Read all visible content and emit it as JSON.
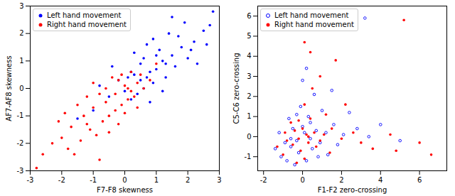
{
  "chart_data": [
    {
      "type": "scatter",
      "x_label": "F7-F8 skewness",
      "y_label": "AF7-AF8 skewness",
      "xlim": [
        -3,
        3
      ],
      "ylim": [
        -3,
        3
      ],
      "xticks": [
        -3,
        -2,
        -1,
        0,
        1,
        2,
        3
      ],
      "yticks": [
        -3,
        -2,
        -1,
        0,
        1,
        2,
        3
      ],
      "legend": "upper left",
      "series": [
        {
          "name": "Left hand movement",
          "color": "blue",
          "marker": "filled",
          "x": [
            0.5,
            0.8,
            1.2,
            0.3,
            1.5,
            0.9,
            0.1,
            1.8,
            2.2,
            0.6,
            1.0,
            0.4,
            1.3,
            2.5,
            0.7,
            1.6,
            -0.2,
            0.2,
            1.1,
            2.0,
            0.0,
            1.4,
            2.7,
            0.8,
            1.9,
            -0.5,
            0.5,
            1.7,
            2.3,
            -1.0,
            0.3,
            1.2,
            2.8,
            0.9,
            -0.4,
            1.5,
            2.1,
            0.6,
            -1.5,
            1.0,
            2.6,
            0.2,
            -0.8,
            1.3,
            0.7
          ],
          "y": [
            0.3,
            0.6,
            1.0,
            0.5,
            1.2,
            0.2,
            0.4,
            1.5,
            1.7,
            1.1,
            0.7,
            -0.2,
            0.4,
            2.1,
            1.6,
            0.8,
            0.3,
            -0.4,
            1.4,
            1.1,
            -0.1,
            2.0,
            2.3,
            -0.5,
            2.4,
            -0.3,
            0.9,
            1.9,
            0.9,
            -0.8,
            1.3,
            -0.1,
            2.8,
            1.8,
            0.8,
            2.6,
            1.4,
            0.0,
            -1.1,
            1.2,
            1.6,
            0.6,
            0.1,
            0.9,
            0.4
          ]
        },
        {
          "name": "Right hand movement",
          "color": "red",
          "marker": "filled",
          "x": [
            -0.3,
            0.0,
            -0.6,
            0.2,
            -1.0,
            -0.2,
            0.4,
            -1.3,
            -0.8,
            -0.5,
            0.1,
            -1.7,
            -2.0,
            -0.1,
            0.5,
            -1.1,
            -0.4,
            -2.3,
            -0.7,
            0.3,
            -1.5,
            -0.9,
            0.0,
            -2.6,
            -1.2,
            0.6,
            -0.2,
            -1.8,
            -0.6,
            0.2,
            -1.4,
            -2.8,
            0.8,
            -0.3,
            -1.9,
            -1.0,
            -0.5,
            0.1,
            -2.1,
            -0.8,
            1.0,
            -1.6,
            -0.1,
            -1.2,
            0.4
          ],
          "y": [
            -0.2,
            0.1,
            -0.5,
            -0.1,
            -0.7,
            0.3,
            0.2,
            -1.0,
            -0.2,
            -1.0,
            -0.4,
            -1.4,
            -1.8,
            -0.6,
            0.5,
            -1.5,
            0.4,
            -2.0,
            -1.2,
            -0.3,
            -0.6,
            -1.7,
            -0.9,
            -2.4,
            -0.3,
            0.0,
            -1.3,
            -2.2,
            0.0,
            0.6,
            -1.9,
            -2.9,
            0.3,
            -0.8,
            -0.9,
            0.2,
            -1.6,
            0.0,
            -1.2,
            -2.6,
            0.9,
            -2.4,
            0.5,
            -1.3,
            -0.7
          ]
        }
      ]
    },
    {
      "type": "scatter",
      "x_label": "F1-F2 zero-crossing",
      "y_label": "C5-C6 zero-crossing",
      "xlim": [
        -2.3,
        7.4
      ],
      "ylim": [
        -1.7,
        6.5
      ],
      "xticks": [
        -2,
        0,
        2,
        4,
        6
      ],
      "yticks": [
        -1,
        0,
        1,
        2,
        3,
        4,
        5,
        6
      ],
      "legend": "upper left",
      "series": [
        {
          "name": "Left hand movement",
          "color": "blue",
          "marker": "hollow",
          "x": [
            -0.3,
            0.1,
            -0.6,
            0.4,
            0.0,
            -0.9,
            0.7,
            -0.2,
            0.3,
            1.2,
            -1.1,
            0.5,
            -0.5,
            1.6,
            0.9,
            -0.1,
            2.1,
            -1.4,
            0.2,
            1.0,
            2.8,
            -0.7,
            0.6,
            3.4,
            -0.4,
            1.3,
            0.0,
            2.4,
            -0.8,
            4.0,
            0.4,
            -1.2,
            1.8,
            0.2,
            3.2,
            -0.3,
            0.8,
            5.0,
            1.5,
            -0.6
          ],
          "y": [
            -0.2,
            0.2,
            -0.5,
            -0.1,
            0.5,
            -0.3,
            0.3,
            -0.8,
            1.0,
            0.2,
            -1.0,
            -0.6,
            0.4,
            0.6,
            -0.3,
            1.5,
            0.1,
            -0.6,
            -1.2,
            1.3,
            0.4,
            0.9,
            2.1,
            0.0,
            -1.4,
            -0.9,
            2.8,
            1.2,
            -1.2,
            0.6,
            0.7,
            0.2,
            -0.4,
            3.4,
            5.9,
            1.1,
            -1.0,
            -0.2,
            2.3,
            -0.1
          ]
        },
        {
          "name": "Right hand movement",
          "color": "red",
          "marker": "filled",
          "x": [
            -0.2,
            0.2,
            -0.5,
            0.3,
            0.0,
            -0.8,
            0.6,
            -0.1,
            0.4,
            1.1,
            -1.0,
            0.7,
            -0.4,
            1.5,
            0.9,
            0.1,
            2.0,
            -1.3,
            0.1,
            1.2,
            2.6,
            -0.6,
            0.5,
            3.0,
            0.1,
            0.4,
            6.0,
            6.6,
            4.5,
            5.2,
            1.7,
            3.6,
            -0.3,
            0.9,
            2.2,
            -0.9,
            1.4,
            4.8,
            0.3,
            -0.2
          ],
          "y": [
            -0.1,
            0.1,
            -0.4,
            -0.3,
            0.4,
            -0.2,
            0.2,
            -0.7,
            0.9,
            0.1,
            -0.9,
            -0.5,
            0.3,
            0.4,
            -0.2,
            1.6,
            -0.1,
            -0.5,
            -1.1,
            1.1,
            0.2,
            0.7,
            2.4,
            -0.3,
            4.7,
            4.2,
            -0.3,
            -0.9,
            0.1,
            5.8,
            3.8,
            -0.6,
            -1.3,
            3.0,
            1.6,
            0.2,
            -0.8,
            -0.7,
            0.0,
            0.8
          ]
        }
      ]
    }
  ]
}
